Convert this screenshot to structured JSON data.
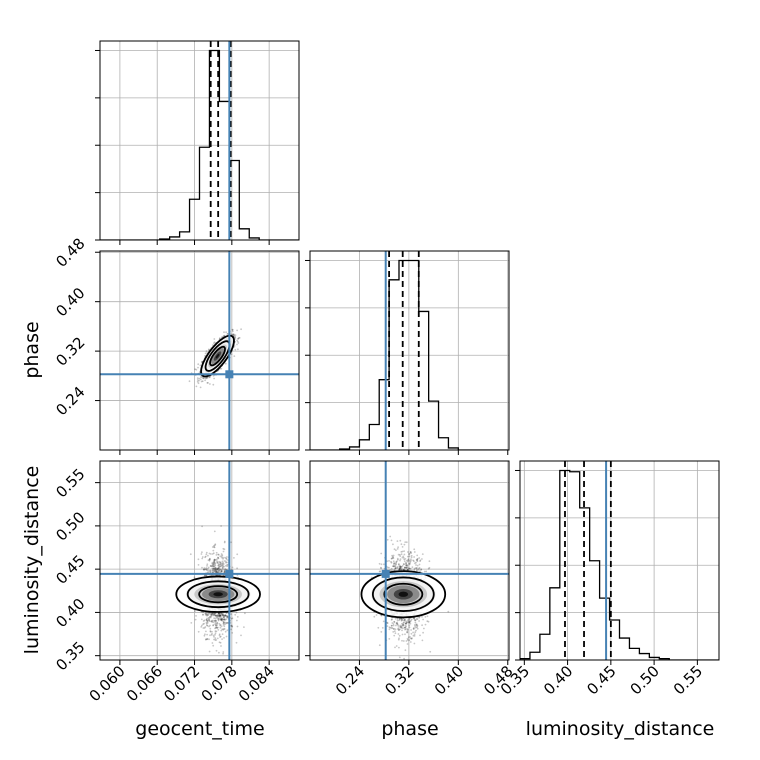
{
  "chart_data": {
    "type": "corner",
    "parameters": [
      "geocent_time",
      "phase",
      "luminosity_distance"
    ],
    "axis_labels": {
      "geocent_time": "geocent_time",
      "phase": "phase",
      "luminosity_distance": "luminosity_distance"
    },
    "ranges": {
      "geocent_time": [
        0.0568,
        0.0888
      ],
      "phase": [
        0.16,
        0.482
      ],
      "luminosity_distance": [
        0.345,
        0.575
      ]
    },
    "ticks": {
      "geocent_time": [
        "0.060",
        "0.066",
        "0.072",
        "0.078",
        "0.084"
      ],
      "phase": [
        "0.24",
        "0.32",
        "0.40",
        "0.48"
      ],
      "luminosity_distance": [
        "0.35",
        "0.40",
        "0.45",
        "0.50",
        "0.55"
      ],
      "geocent_time_values": [
        0.06,
        0.066,
        0.072,
        0.078,
        0.084
      ],
      "phase_values": [
        0.24,
        0.32,
        0.4,
        0.48
      ],
      "luminosity_distance_values": [
        0.35,
        0.4,
        0.45,
        0.5,
        0.55
      ]
    },
    "truths": {
      "geocent_time": 0.0776,
      "phase": 0.2825,
      "luminosity_distance": 0.4445
    },
    "truth_color": "#4682b4",
    "quantiles": {
      "geocent_time": [
        0.0746,
        0.0758,
        0.0778
      ],
      "phase": [
        0.288,
        0.31,
        0.336
      ],
      "luminosity_distance": [
        0.397,
        0.419,
        0.45
      ]
    },
    "histograms": {
      "geocent_time": {
        "bin_edges": [
          0.0568,
          0.0584,
          0.06,
          0.0616,
          0.0632,
          0.0648,
          0.0664,
          0.068,
          0.0696,
          0.0712,
          0.0728,
          0.0744,
          0.076,
          0.0776,
          0.0792,
          0.0808,
          0.0824,
          0.084,
          0.0856,
          0.0872,
          0.0888
        ],
        "counts": [
          0,
          0,
          0,
          0,
          0,
          0,
          1,
          3,
          8,
          40,
          91,
          186,
          136,
          78,
          11,
          2,
          0,
          0,
          0,
          0
        ]
      },
      "phase": {
        "bin_edges": [
          0.16,
          0.176,
          0.192,
          0.208,
          0.224,
          0.24,
          0.256,
          0.272,
          0.288,
          0.304,
          0.32,
          0.336,
          0.352,
          0.368,
          0.384,
          0.4,
          0.416,
          0.432,
          0.448,
          0.464,
          0.48
        ],
        "counts": [
          0,
          0,
          0,
          1,
          3,
          10,
          25,
          69,
          167,
          186,
          186,
          136,
          48,
          12,
          2,
          0,
          0,
          0,
          0,
          0
        ]
      },
      "luminosity_distance": {
        "bin_edges": [
          0.345,
          0.3565,
          0.368,
          0.3795,
          0.391,
          0.4025,
          0.414,
          0.4255,
          0.437,
          0.4485,
          0.46,
          0.4715,
          0.483,
          0.4945,
          0.506,
          0.5175,
          0.529,
          0.5405,
          0.552,
          0.5635,
          0.575
        ],
        "counts": [
          1,
          6,
          20,
          56,
          147,
          146,
          118,
          77,
          48,
          31,
          17,
          9,
          5,
          2,
          1,
          0,
          0,
          0,
          0,
          0
        ]
      }
    },
    "joint": {
      "phase_vs_geocent_time": {
        "mean": [
          0.0757,
          0.312
        ],
        "sd": [
          0.0012,
          0.015
        ],
        "corr": 0.75
      },
      "luminosity_distance_vs_geocent_time": {
        "mean": [
          0.0758,
          0.421
        ],
        "sd": [
          0.0013,
          0.022
        ],
        "corr": 0.0
      },
      "luminosity_distance_vs_phase": {
        "mean": [
          0.311,
          0.421
        ],
        "sd": [
          0.017,
          0.022
        ],
        "corr": 0.0
      }
    },
    "contour_levels_sigma": [
      1,
      2,
      3
    ],
    "grid": true,
    "legend": null
  }
}
